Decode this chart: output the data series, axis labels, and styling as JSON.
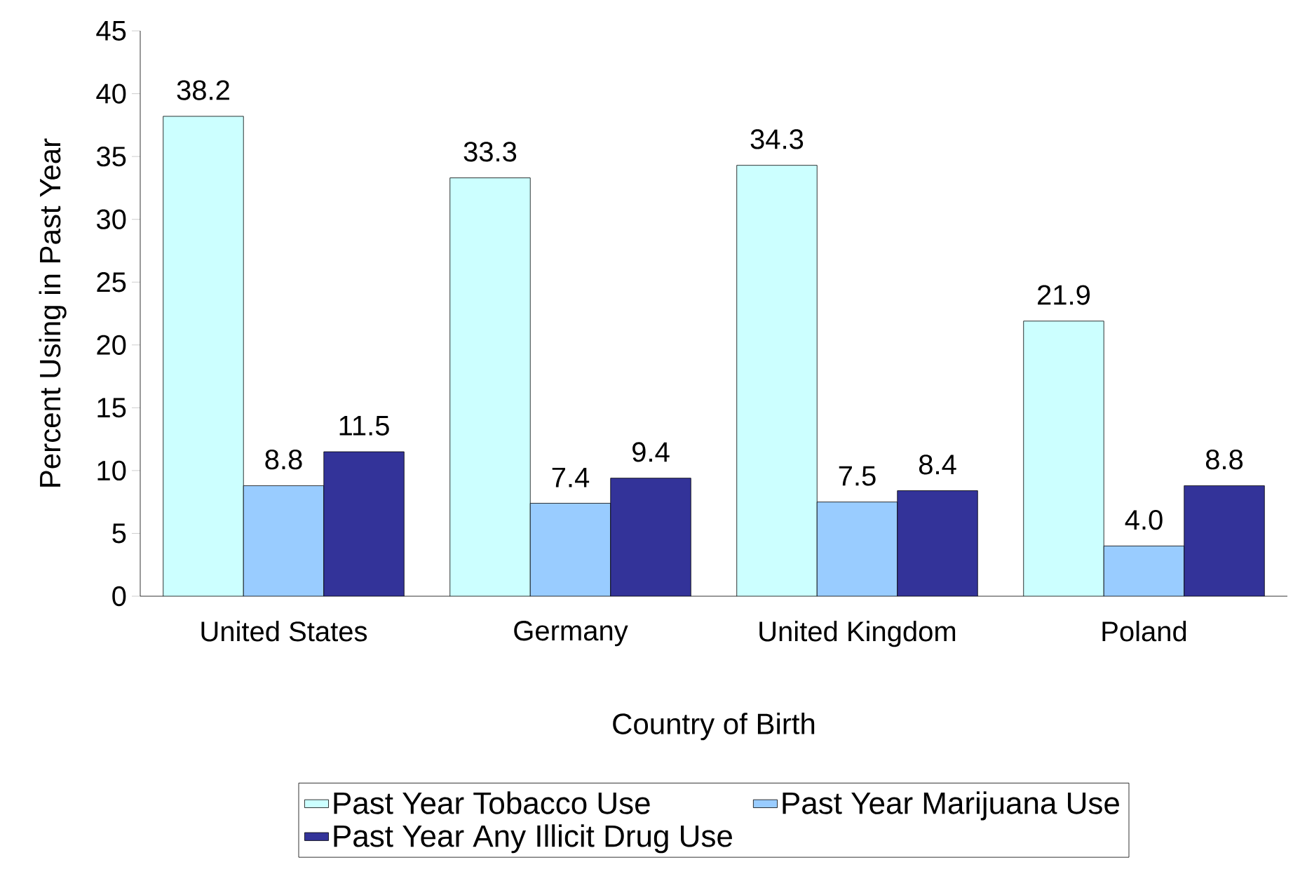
{
  "chart_data": {
    "type": "bar",
    "xlabel": "Country of Birth",
    "ylabel": "Percent Using in Past Year",
    "categories": [
      "United States",
      "Germany",
      "United Kingdom",
      "Poland"
    ],
    "series": [
      {
        "name": "Past Year Tobacco Use",
        "color": "#ccffff",
        "values": [
          38.2,
          33.3,
          34.3,
          21.9
        ],
        "value_labels": [
          "38.2",
          "33.3",
          "34.3",
          "21.9"
        ]
      },
      {
        "name": "Past Year Marijuana Use",
        "color": "#99ccff",
        "values": [
          8.8,
          7.4,
          7.5,
          4.0
        ],
        "value_labels": [
          "8.8",
          "7.4",
          "7.5",
          "4.0"
        ]
      },
      {
        "name": "Past Year Any Illicit Drug Use",
        "color": "#333399",
        "values": [
          11.5,
          9.4,
          8.4,
          8.8
        ],
        "value_labels": [
          "11.5",
          "9.4",
          "8.4",
          "8.8"
        ]
      }
    ],
    "ylim": [
      0,
      45
    ],
    "yticks": [
      0,
      5,
      10,
      15,
      20,
      25,
      30,
      35,
      40,
      45
    ],
    "legend": "bottom"
  }
}
